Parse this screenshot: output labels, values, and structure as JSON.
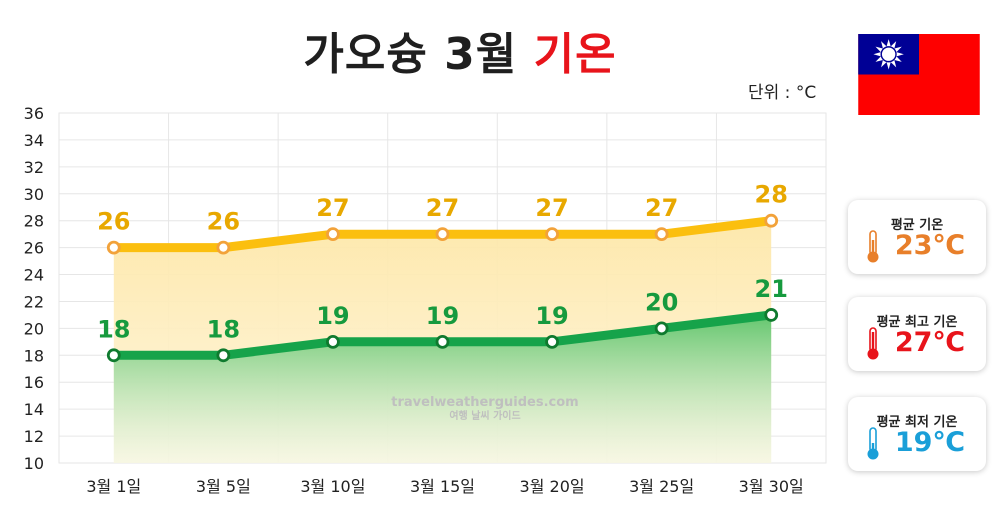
{
  "title": {
    "main": "가오슝 3월",
    "accent": "기온"
  },
  "unit_label": "단위 : °C",
  "watermark": {
    "line1": "travelweatherguides.com",
    "line2": "여행 날씨 가이드"
  },
  "flag": {
    "name": "taiwan-flag"
  },
  "cards": [
    {
      "label": "평균 기온",
      "value": "23℃",
      "color": "#e87f2a",
      "icon": "thermometer-icon"
    },
    {
      "label": "평균 최고 기온",
      "value": "27℃",
      "color": "#e8141b",
      "icon": "thermometer-icon"
    },
    {
      "label": "평균 최저 기온",
      "value": "19℃",
      "color": "#1a9fd8",
      "icon": "thermometer-icon"
    }
  ],
  "chart_data": {
    "type": "area",
    "title": "가오슝 3월 기온",
    "ylabel": "단위 : °C",
    "categories": [
      "3월 1일",
      "3월 5일",
      "3월 10일",
      "3월 15일",
      "3월 20일",
      "3월 25일",
      "3월 30일"
    ],
    "ylim": [
      10,
      36
    ],
    "yticks": [
      10,
      12,
      14,
      16,
      18,
      20,
      22,
      24,
      26,
      28,
      30,
      32,
      34,
      36
    ],
    "grid": true,
    "series": [
      {
        "name": "평균 최고 기온",
        "values": [
          26,
          26,
          27,
          27,
          27,
          27,
          28
        ],
        "color": "#fbbf0f",
        "label_color": "#e8a800"
      },
      {
        "name": "평균 최저 기온",
        "values": [
          18,
          18,
          19,
          19,
          19,
          20,
          21
        ],
        "color": "#16a34a",
        "label_color": "#169a3e"
      }
    ]
  }
}
